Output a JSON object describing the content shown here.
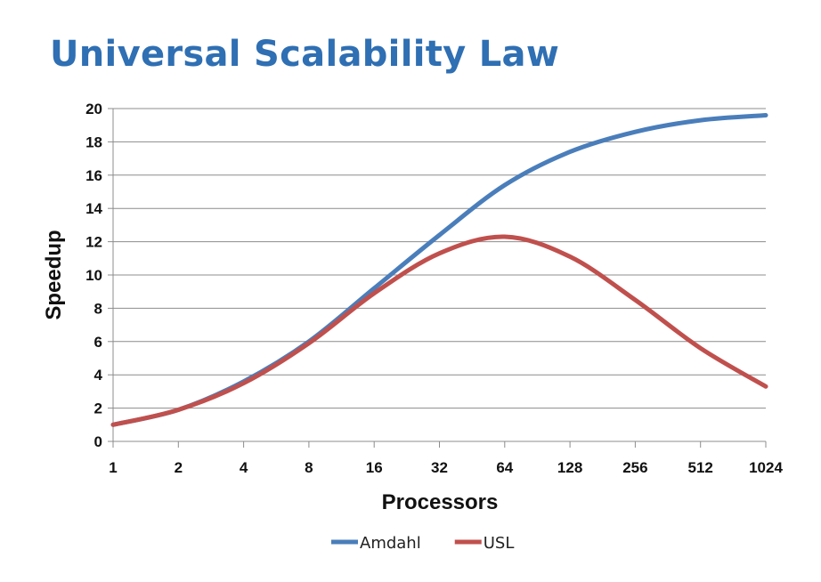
{
  "slide": {
    "title": "Universal Scalability Law"
  },
  "chart_data": {
    "type": "line",
    "title": "Universal Scalability Law",
    "xlabel": "Processors",
    "ylabel": "Speedup",
    "x_scale": "log2",
    "x": [
      1,
      2,
      4,
      8,
      16,
      32,
      64,
      128,
      256,
      512,
      1024
    ],
    "x_tick_labels": [
      "1",
      "2",
      "4",
      "8",
      "16",
      "32",
      "64",
      "128",
      "256",
      "512",
      "1024"
    ],
    "ylim": [
      0,
      20
    ],
    "y_ticks": [
      0,
      2,
      4,
      6,
      8,
      10,
      12,
      14,
      16,
      18,
      20
    ],
    "grid": "horizontal",
    "legend": "bottom",
    "series": [
      {
        "name": "Amdahl",
        "color": "#4a7ebb",
        "values": [
          1.0,
          1.9,
          3.6,
          6.0,
          9.2,
          12.4,
          15.4,
          17.4,
          18.6,
          19.3,
          19.6
        ]
      },
      {
        "name": "USL",
        "color": "#c0504d",
        "values": [
          1.0,
          1.9,
          3.5,
          5.9,
          8.9,
          11.3,
          12.3,
          11.1,
          8.5,
          5.6,
          3.3
        ]
      }
    ]
  }
}
